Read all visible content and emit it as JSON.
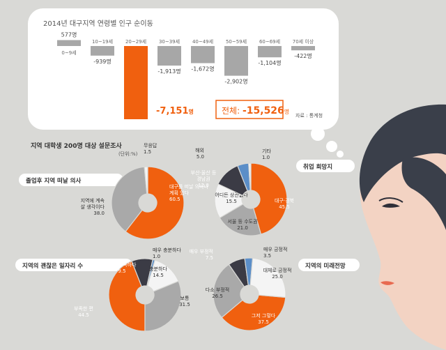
{
  "colors": {
    "background": "#d9d9d6",
    "bubble": "#ffffff",
    "orange": "#f0600f",
    "gray_bar": "#a7a7a7",
    "dark": "#3b3b45",
    "light_gray": "#a9a9a9",
    "blue": "#5b8ec8",
    "white_slice": "#f4f4f4"
  },
  "migration": {
    "title": "2014년 대구지역 연령별 인구 순이동",
    "total_label": "전체: ",
    "total_value": "-15,526",
    "total_unit": "명",
    "source": "자료 : 통계청"
  },
  "chart_data": [
    {
      "type": "bar",
      "title": "2014년 대구지역 연령별 인구 순이동",
      "categories": [
        "0~9세",
        "10~19세",
        "20~29세",
        "30~39세",
        "40~49세",
        "50~59세",
        "60~69세",
        "70세 이상"
      ],
      "values": [
        577,
        -939,
        -7151,
        -1913,
        -1672,
        -2902,
        -1104,
        -422
      ],
      "value_labels": [
        "577명",
        "-939명",
        "-7,151명",
        "-1,913명",
        "-1,672명",
        "-2,902명",
        "-1,104명",
        "-422명"
      ],
      "highlight_index": 2,
      "unit": "명",
      "total": -15526,
      "grid": false
    },
    {
      "type": "pie",
      "title": "졸업후 지역 떠날 의사",
      "unit_note": "(단위:%)",
      "slices": [
        {
          "label": "대구를 떠날 의사나 계획 있다",
          "value": 60.5,
          "value_text": "60.5",
          "color": "#f0600f"
        },
        {
          "label": "지역에 계속 살 생각이다",
          "value": 38.0,
          "value_text": "38.0",
          "color": "#a9a9a9"
        },
        {
          "label": "무응답",
          "value": 1.5,
          "value_text": "1.5",
          "color": "#f4f4f4"
        }
      ]
    },
    {
      "type": "pie",
      "title": "취업 희망지",
      "slices": [
        {
          "label": "대구·경북",
          "value": 45.5,
          "value_text": "45.5",
          "color": "#f0600f"
        },
        {
          "label": "서울 등 수도권",
          "value": 21.0,
          "value_text": "21.0",
          "color": "#a9a9a9"
        },
        {
          "label": "어디든 상관없다",
          "value": 15.5,
          "value_text": "15.5",
          "color": "#f4f4f4"
        },
        {
          "label": "부산·울산 등 경남권",
          "value": 12.0,
          "value_text": "12.0",
          "color": "#3b3b45"
        },
        {
          "label": "해외",
          "value": 5.0,
          "value_text": "5.0",
          "color": "#5b8ec8"
        },
        {
          "label": "기타",
          "value": 1.0,
          "value_text": "1.0",
          "color": "#f4f4f4"
        }
      ]
    },
    {
      "type": "pie",
      "title": "지역의 괜찮은 일자리 수",
      "slices": [
        {
          "label": "부족한 편",
          "value": 44.5,
          "value_text": "44.5",
          "color": "#f0600f"
        },
        {
          "label": "매우 부족하다",
          "value": 9.5,
          "value_text": "9.5",
          "color": "#3b3b45"
        },
        {
          "label": "매우 충분하다",
          "value": 1.0,
          "value_text": "1.0",
          "color": "#5b8ec8"
        },
        {
          "label": "충분하다",
          "value": 14.5,
          "value_text": "14.5",
          "color": "#f4f4f4"
        },
        {
          "label": "보통",
          "value": 31.5,
          "value_text": "31.5",
          "color": "#a9a9a9"
        }
      ]
    },
    {
      "type": "pie",
      "title": "지역의 미래전망",
      "slices": [
        {
          "label": "그저 그렇다",
          "value": 37.5,
          "value_text": "37.5",
          "color": "#f0600f"
        },
        {
          "label": "다소 부정적",
          "value": 26.5,
          "value_text": "26.5",
          "color": "#a9a9a9"
        },
        {
          "label": "매우 부정적",
          "value": 7.5,
          "value_text": "7.5",
          "color": "#3b3b45"
        },
        {
          "label": "매우 긍정적",
          "value": 3.5,
          "value_text": "3.5",
          "color": "#5b8ec8"
        },
        {
          "label": "대체로 긍정적",
          "value": 25.0,
          "value_text": "25.0",
          "color": "#f4f4f4"
        }
      ]
    }
  ],
  "survey": {
    "heading": "지역 대학생 200명 대상 설문조사"
  }
}
